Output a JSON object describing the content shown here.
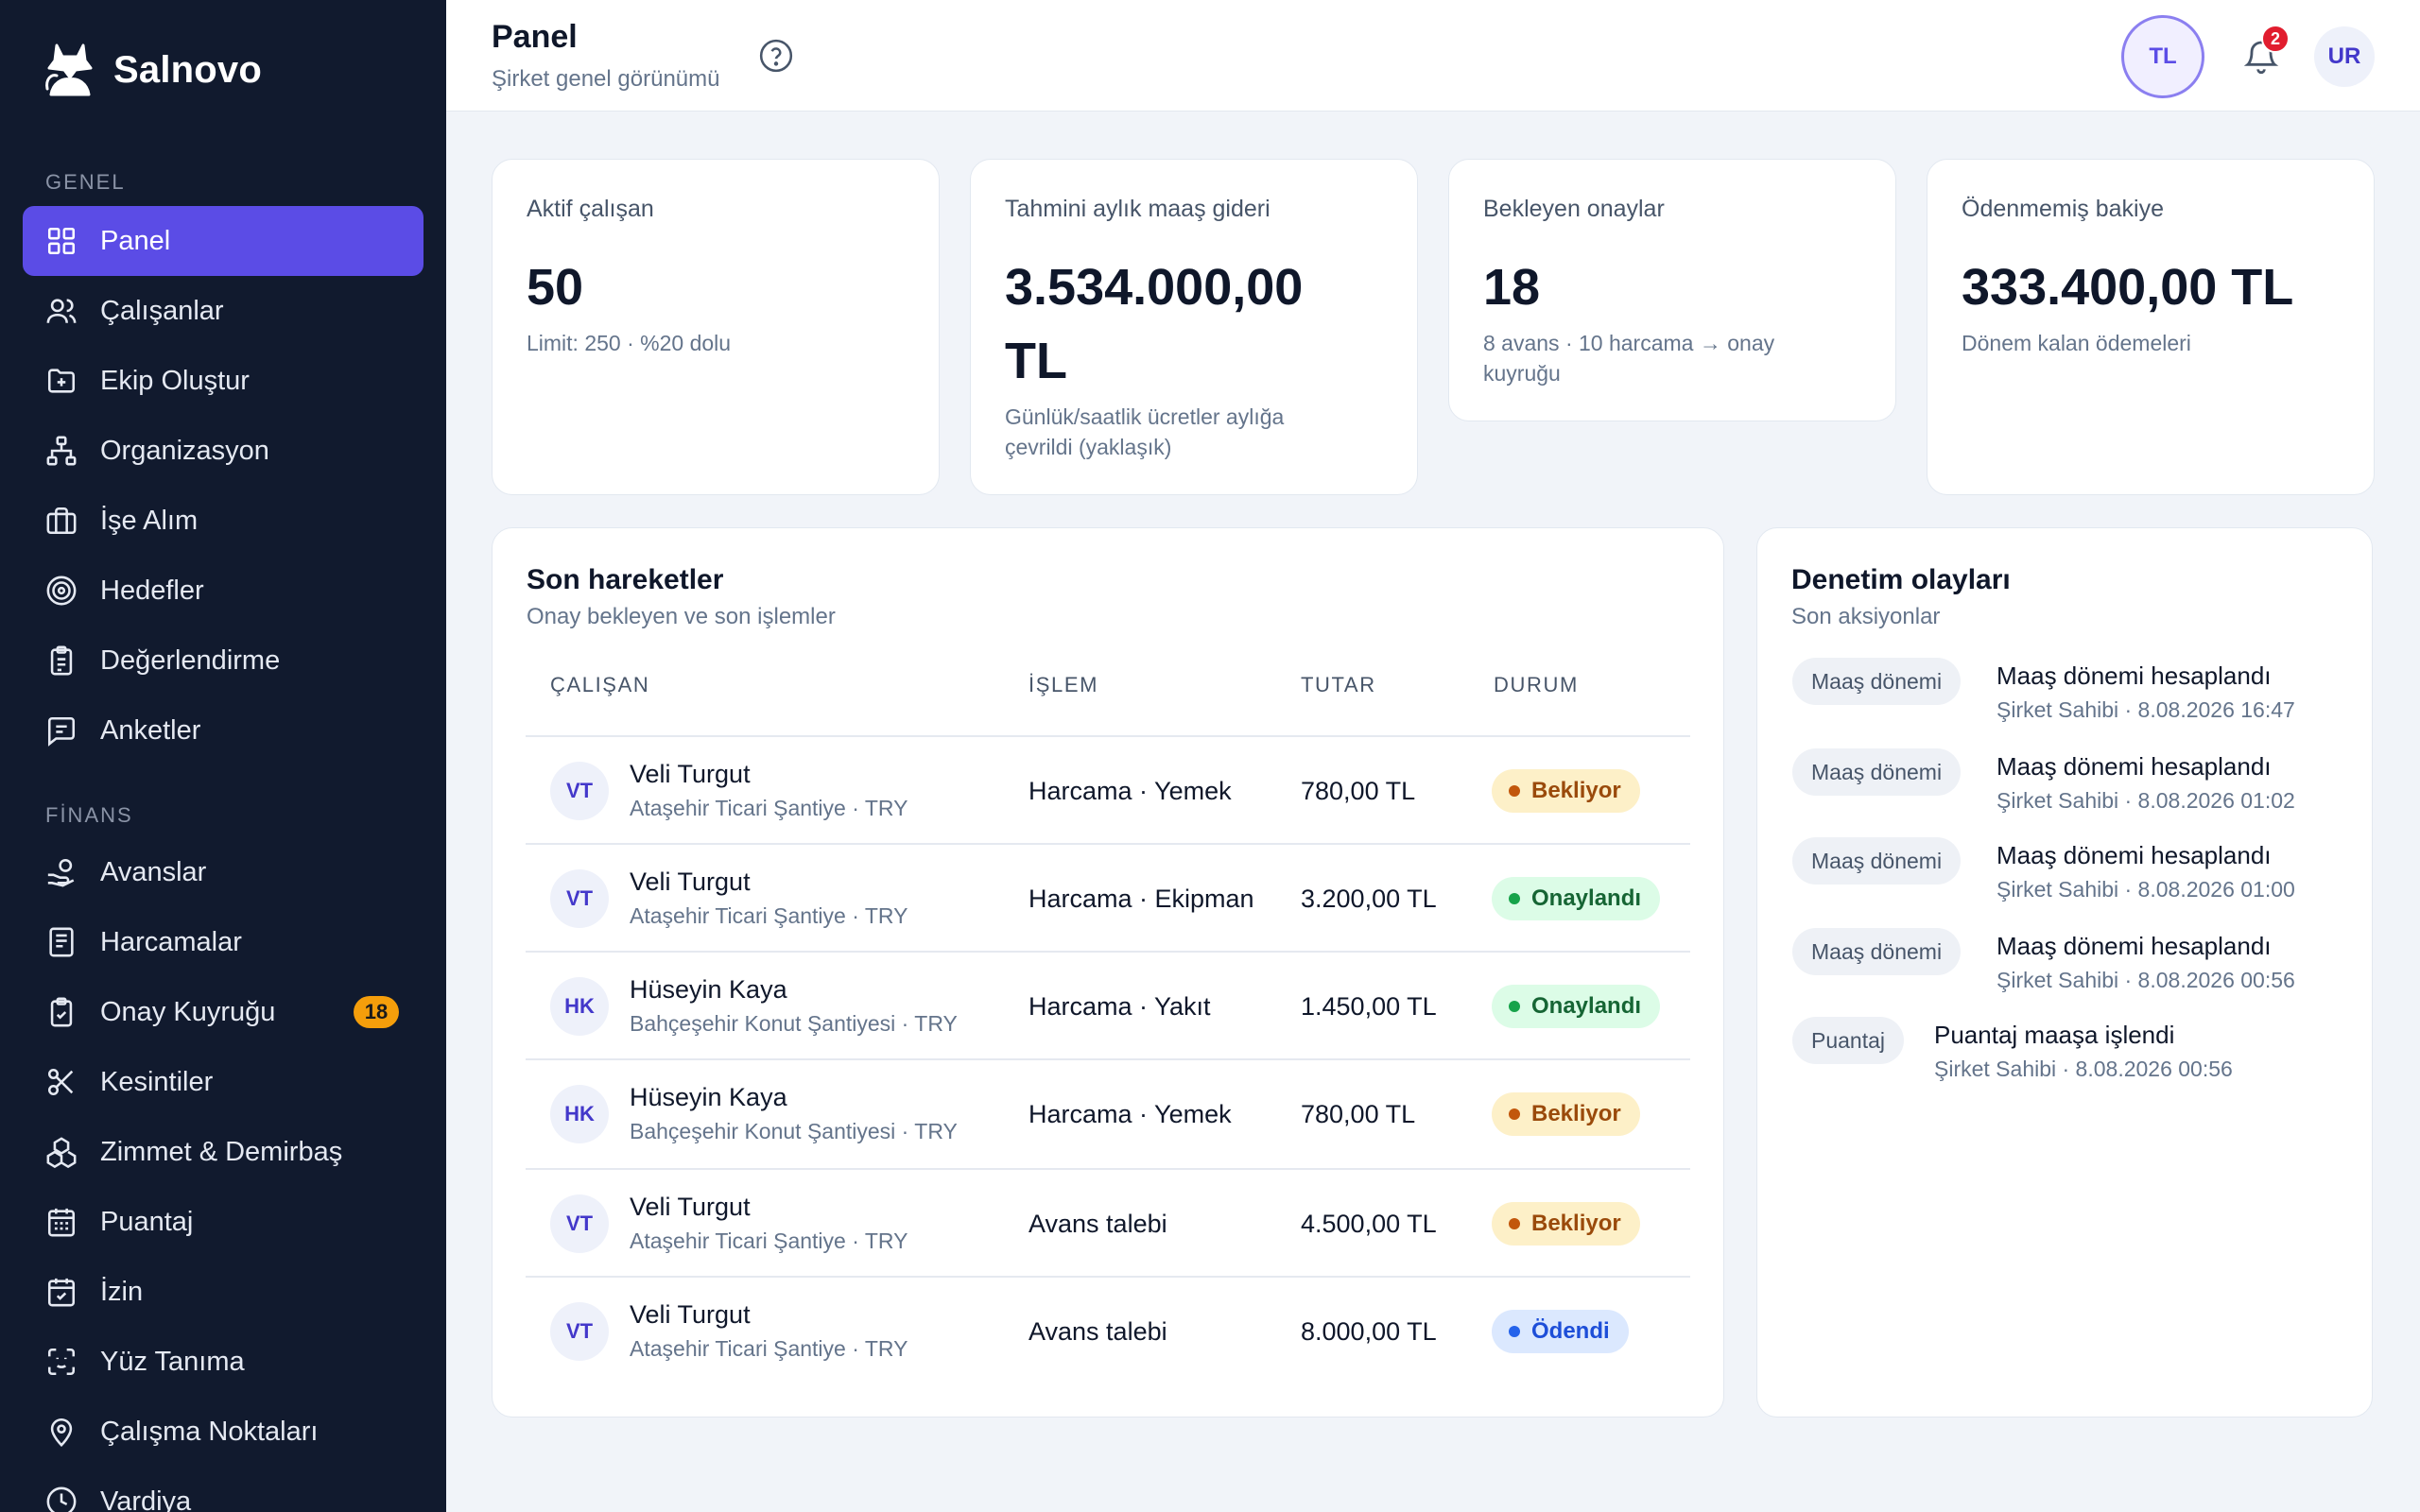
{
  "brand": {
    "name": "Salnovo"
  },
  "sidebar": {
    "sections": [
      {
        "label": "GENEL",
        "items": [
          {
            "label": "Panel",
            "icon": "grid-icon",
            "active": true
          },
          {
            "label": "Çalışanlar",
            "icon": "users-icon"
          },
          {
            "label": "Ekip Oluştur",
            "icon": "folder-plus-icon"
          },
          {
            "label": "Organizasyon",
            "icon": "org-chart-icon"
          },
          {
            "label": "İşe Alım",
            "icon": "briefcase-icon"
          },
          {
            "label": "Hedefler",
            "icon": "target-icon"
          },
          {
            "label": "Değerlendirme",
            "icon": "clipboard-icon"
          },
          {
            "label": "Anketler",
            "icon": "message-square-icon"
          }
        ]
      },
      {
        "label": "FİNANS",
        "items": [
          {
            "label": "Avanslar",
            "icon": "hand-coins-icon"
          },
          {
            "label": "Harcamalar",
            "icon": "receipt-icon"
          },
          {
            "label": "Onay Kuyruğu",
            "icon": "clipboard-check-icon",
            "badge": "18"
          },
          {
            "label": "Kesintiler",
            "icon": "scissors-icon"
          },
          {
            "label": "Zimmet & Demirbaş",
            "icon": "boxes-icon"
          },
          {
            "label": "Puantaj",
            "icon": "calendar-grid-icon"
          },
          {
            "label": "İzin",
            "icon": "calendar-check-icon"
          },
          {
            "label": "Yüz Tanıma",
            "icon": "face-scan-icon"
          },
          {
            "label": "Çalışma Noktaları",
            "icon": "map-pin-icon"
          },
          {
            "label": "Vardiya",
            "icon": "clock-icon"
          }
        ]
      }
    ]
  },
  "header": {
    "title": "Panel",
    "subtitle": "Şirket genel görünümü",
    "currency": "TL",
    "notifications": "2",
    "user_initials": "UR"
  },
  "stats": [
    {
      "label": "Aktif çalışan",
      "value": "50",
      "note": "Limit: 250 · %20 dolu"
    },
    {
      "label": "Tahmini aylık maaş gideri",
      "value": "3.534.000,00 TL",
      "note": "Günlük/saatlik ücretler aylığa çevrildi (yaklaşık)"
    },
    {
      "label": "Bekleyen onaylar",
      "value": "18",
      "note": "8 avans · 10 harcama → onay kuyruğu"
    },
    {
      "label": "Ödenmemiş bakiye",
      "value": "333.400,00 TL",
      "note": "Dönem kalan ödemeleri"
    }
  ],
  "transactions": {
    "title": "Son hareketler",
    "subtitle": "Onay bekleyen ve son işlemler",
    "columns": [
      "ÇALIŞAN",
      "İŞLEM",
      "TUTAR",
      "DURUM"
    ],
    "rows": [
      {
        "initials": "VT",
        "name": "Veli Turgut",
        "sub": "Ataşehir Ticari Şantiye · TRY",
        "op": "Harcama · Yemek",
        "amount": "780,00 TL",
        "status": "Bekliyor"
      },
      {
        "initials": "VT",
        "name": "Veli Turgut",
        "sub": "Ataşehir Ticari Şantiye · TRY",
        "op": "Harcama · Ekipman",
        "amount": "3.200,00 TL",
        "status": "Onaylandı"
      },
      {
        "initials": "HK",
        "name": "Hüseyin Kaya",
        "sub": "Bahçeşehir Konut Şantiyesi · TRY",
        "op": "Harcama · Yakıt",
        "amount": "1.450,00 TL",
        "status": "Onaylandı"
      },
      {
        "initials": "HK",
        "name": "Hüseyin Kaya",
        "sub": "Bahçeşehir Konut Şantiyesi · TRY",
        "op": "Harcama · Yemek",
        "amount": "780,00 TL",
        "status": "Bekliyor"
      },
      {
        "initials": "VT",
        "name": "Veli Turgut",
        "sub": "Ataşehir Ticari Şantiye · TRY",
        "op": "Avans talebi",
        "amount": "4.500,00 TL",
        "status": "Bekliyor"
      },
      {
        "initials": "VT",
        "name": "Veli Turgut",
        "sub": "Ataşehir Ticari Şantiye · TRY",
        "op": "Avans talebi",
        "amount": "8.000,00 TL",
        "status": "Ödendi"
      }
    ]
  },
  "audit": {
    "title": "Denetim olayları",
    "subtitle": "Son aksiyonlar",
    "items": [
      {
        "tag": "Maaş dönemi",
        "title": "Maaş dönemi hesaplandı",
        "meta": "Şirket Sahibi · 8.08.2026 16:47"
      },
      {
        "tag": "Maaş dönemi",
        "title": "Maaş dönemi hesaplandı",
        "meta": "Şirket Sahibi · 8.08.2026 01:02"
      },
      {
        "tag": "Maaş dönemi",
        "title": "Maaş dönemi hesaplandı",
        "meta": "Şirket Sahibi · 8.08.2026 01:00"
      },
      {
        "tag": "Maaş dönemi",
        "title": "Maaş dönemi hesaplandı",
        "meta": "Şirket Sahibi · 8.08.2026 00:56"
      },
      {
        "tag": "Puantaj",
        "title": "Puantaj maaşa işlendi",
        "meta": "Şirket Sahibi · 8.08.2026 00:56"
      }
    ]
  }
}
